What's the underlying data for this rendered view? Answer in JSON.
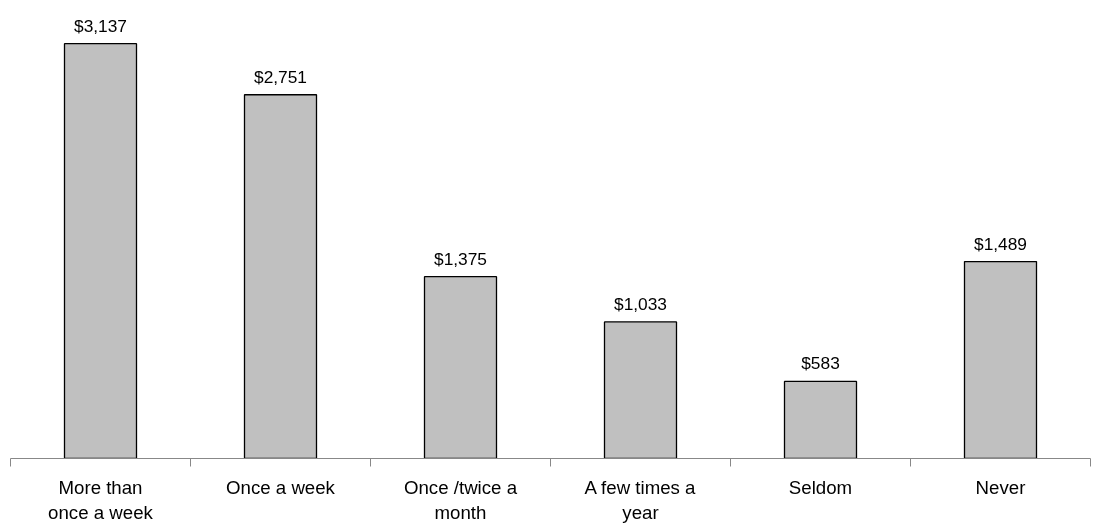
{
  "chart_data": {
    "type": "bar",
    "categories": [
      "More than once a week",
      "Once a week",
      "Once /twice a month",
      "A few times a year",
      "Seldom",
      "Never"
    ],
    "values": [
      3137,
      2751,
      1375,
      1033,
      583,
      1489
    ],
    "value_labels": [
      "$3,137",
      "$2,751",
      "$1,375",
      "$1,033",
      "$583",
      "$1,489"
    ],
    "color": "#c0c0c0"
  }
}
